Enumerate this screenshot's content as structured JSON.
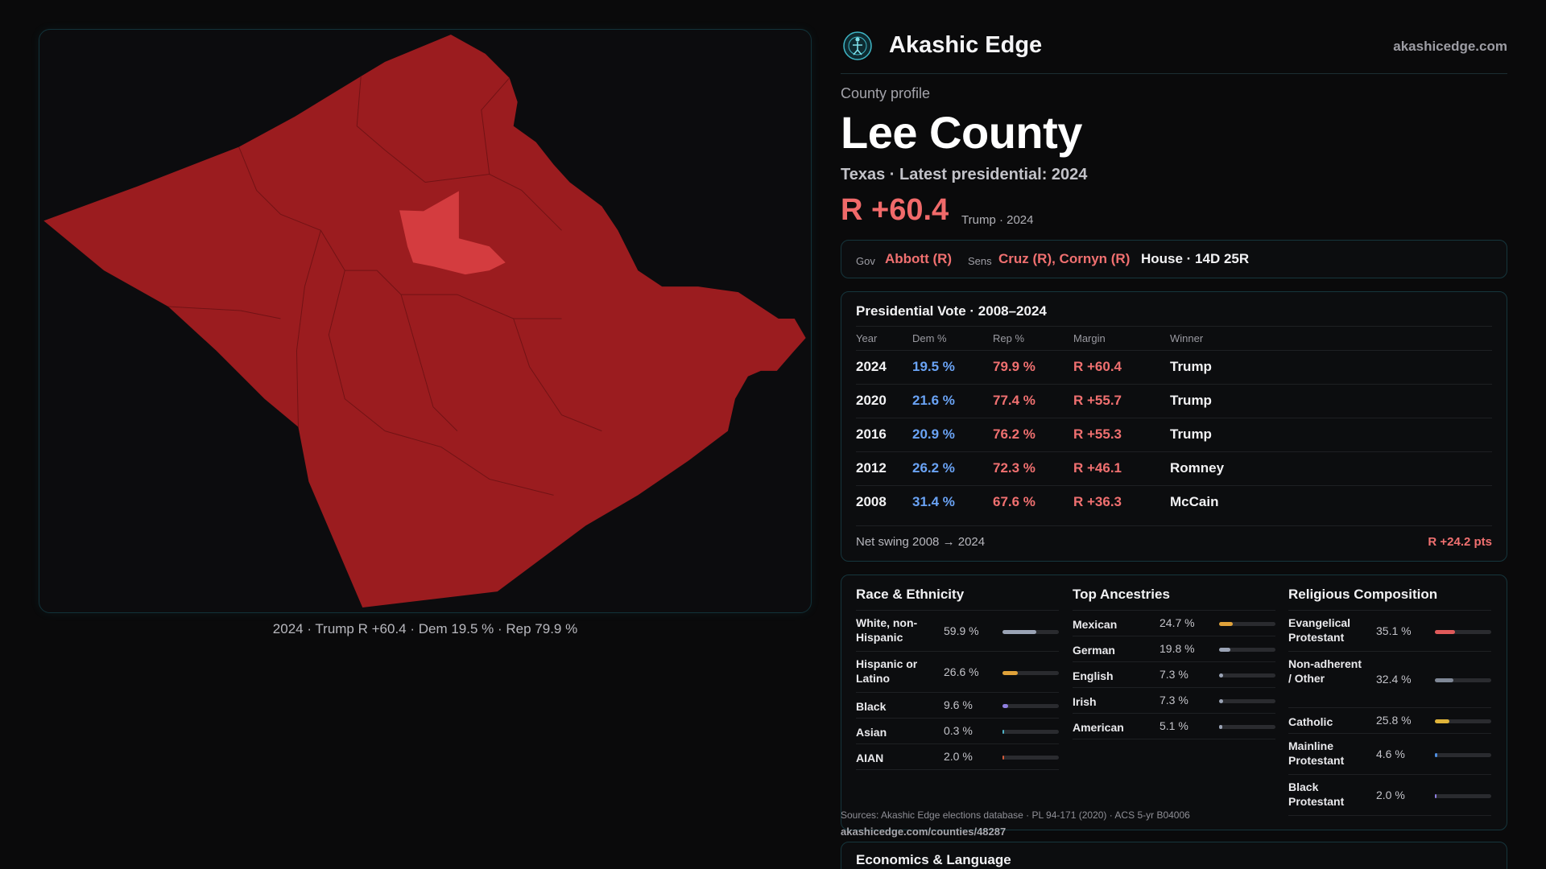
{
  "map": {
    "caption": "2024 · Trump R +60.4 · Dem 19.5 % · Rep 79.9 %",
    "county_color": "#9b1c1f",
    "highlight_color": "#d43c3f"
  },
  "brand": {
    "name": "Akashic Edge",
    "site": "akashicedge.com",
    "icon": "globe-figure-icon"
  },
  "profile": {
    "kicker": "County profile",
    "title": "Lee County",
    "subtitle": "Texas · Latest presidential: 2024",
    "margin": "R +60.4",
    "margin_note": "Trump · 2024"
  },
  "officials": {
    "gov_label": "Gov",
    "gov": "Abbott (R)",
    "sens_label": "Sens",
    "sens": "Cruz (R), Cornyn (R)",
    "house": "House · 14D 25R"
  },
  "presidential": {
    "title": "Presidential Vote · 2008–2024",
    "columns": [
      "Year",
      "Dem %",
      "Rep %",
      "Margin",
      "Winner"
    ],
    "rows": [
      {
        "year": "2024",
        "dem": "19.5 %",
        "rep": "79.9 %",
        "margin": "R +60.4",
        "winner": "Trump"
      },
      {
        "year": "2020",
        "dem": "21.6 %",
        "rep": "77.4 %",
        "margin": "R +55.7",
        "winner": "Trump"
      },
      {
        "year": "2016",
        "dem": "20.9 %",
        "rep": "76.2 %",
        "margin": "R +55.3",
        "winner": "Trump"
      },
      {
        "year": "2012",
        "dem": "26.2 %",
        "rep": "72.3 %",
        "margin": "R +46.1",
        "winner": "Romney"
      },
      {
        "year": "2008",
        "dem": "31.4 %",
        "rep": "67.6 %",
        "margin": "R +36.3",
        "winner": "McCain"
      }
    ],
    "swing_label": "Net swing 2008 → 2024",
    "swing_value": "R +24.2 pts"
  },
  "demographics": {
    "race": {
      "title": "Race & Ethnicity",
      "items": [
        {
          "label": "White, non-Hispanic",
          "value": "59.9 %",
          "fraction": 0.599,
          "color": "#9aa3b5"
        },
        {
          "label": "Hispanic or Latino",
          "value": "26.6 %",
          "fraction": 0.266,
          "color": "#e0a23a"
        },
        {
          "label": "Black",
          "value": "9.6 %",
          "fraction": 0.096,
          "color": "#8f7fe0"
        },
        {
          "label": "Asian",
          "value": "0.3 %",
          "fraction": 0.003,
          "color": "#4fb3c8"
        },
        {
          "label": "AIAN",
          "value": "2.0 %",
          "fraction": 0.02,
          "color": "#d05a3a"
        }
      ]
    },
    "ancestry": {
      "title": "Top Ancestries",
      "items": [
        {
          "label": "Mexican",
          "value": "24.7 %",
          "fraction": 0.247,
          "color": "#e0a23a"
        },
        {
          "label": "German",
          "value": "19.8 %",
          "fraction": 0.198,
          "color": "#9aa3b5"
        },
        {
          "label": "English",
          "value": "7.3 %",
          "fraction": 0.073,
          "color": "#9aa3b5"
        },
        {
          "label": "Irish",
          "value": "7.3 %",
          "fraction": 0.073,
          "color": "#9aa3b5"
        },
        {
          "label": "American",
          "value": "5.1 %",
          "fraction": 0.051,
          "color": "#9aa3b5"
        }
      ]
    },
    "religion": {
      "title": "Religious Composition",
      "items": [
        {
          "label": "Evangelical Protestant",
          "value": "35.1 %",
          "fraction": 0.351,
          "color": "#e05a5a"
        },
        {
          "label": "Non-adherent / Other",
          "value": "32.4 %",
          "fraction": 0.324,
          "color": "#7f8796"
        },
        {
          "label": "Catholic",
          "value": "25.8 %",
          "fraction": 0.258,
          "color": "#e0b43a"
        },
        {
          "label": "Mainline Protestant",
          "value": "4.6 %",
          "fraction": 0.046,
          "color": "#4f8ee0"
        },
        {
          "label": "Black Protestant",
          "value": "2.0 %",
          "fraction": 0.02,
          "color": "#8f7fe0"
        }
      ]
    }
  },
  "sources": {
    "text": "Sources: Akashic Edge elections database · PL 94-171 (2020) · ACS 5-yr B04006",
    "url": "akashicedge.com/counties/48287"
  },
  "economics": {
    "title": "Economics & Language"
  }
}
